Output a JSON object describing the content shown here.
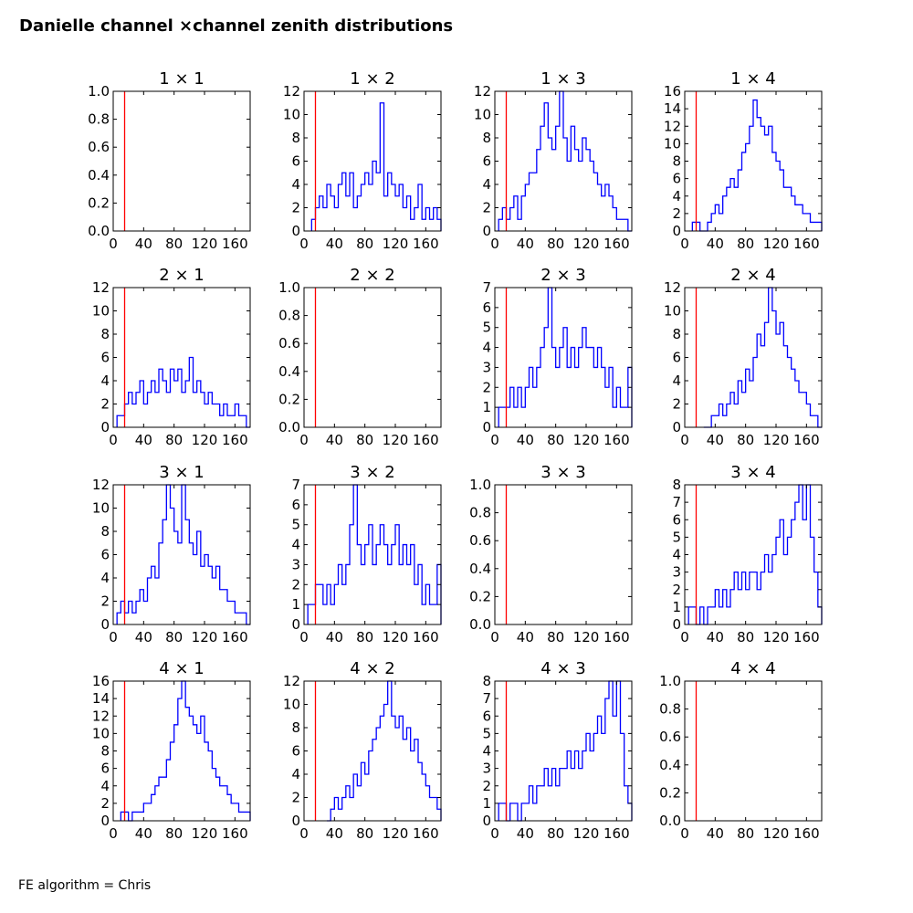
{
  "page": {
    "title": "Danielle channel ×channel zenith distributions",
    "footer": "FE algorithm = Chris"
  },
  "colors": {
    "histogram": "#0000ff",
    "cut_line": "#ff0000",
    "axes": "#000000"
  },
  "chart_data": [
    {
      "type": "histogram",
      "title": "1  × 1",
      "xlim": [
        0,
        180
      ],
      "ylim": [
        0,
        1.0
      ],
      "xticks": [
        "0",
        "40",
        "80",
        "120",
        "160"
      ],
      "yticks": [
        "0.0",
        "0.2",
        "0.4",
        "0.6",
        "0.8",
        "1.0"
      ],
      "cut_x": 15,
      "x": [],
      "values": []
    },
    {
      "type": "histogram",
      "title": "1  × 2",
      "xlim": [
        0,
        180
      ],
      "ylim": [
        0,
        12
      ],
      "xticks": [
        "0",
        "40",
        "80",
        "120",
        "160"
      ],
      "yticks": [
        "0",
        "2",
        "4",
        "6",
        "8",
        "10",
        "12"
      ],
      "cut_x": 15,
      "x": [
        10,
        15,
        20,
        25,
        30,
        35,
        40,
        45,
        50,
        55,
        60,
        65,
        70,
        75,
        80,
        85,
        90,
        95,
        100,
        105,
        110,
        115,
        120,
        125,
        130,
        135,
        140,
        145,
        150,
        155,
        160,
        165,
        170,
        175
      ],
      "values": [
        1,
        2,
        3,
        2,
        4,
        3,
        2,
        4,
        5,
        3,
        5,
        2,
        3,
        4,
        5,
        4,
        6,
        5,
        11,
        3,
        5,
        4,
        3,
        4,
        2,
        3,
        1,
        2,
        4,
        1,
        2,
        1,
        2,
        1
      ]
    },
    {
      "type": "histogram",
      "title": "1  × 3",
      "xlim": [
        0,
        180
      ],
      "ylim": [
        0,
        12
      ],
      "xticks": [
        "0",
        "40",
        "80",
        "120",
        "160"
      ],
      "yticks": [
        "0",
        "2",
        "4",
        "6",
        "8",
        "10",
        "12"
      ],
      "cut_x": 15,
      "x": [
        5,
        10,
        15,
        20,
        25,
        30,
        35,
        40,
        45,
        50,
        55,
        60,
        65,
        70,
        75,
        80,
        85,
        90,
        95,
        100,
        105,
        110,
        115,
        120,
        125,
        130,
        135,
        140,
        145,
        150,
        155,
        160,
        165,
        170,
        175
      ],
      "values": [
        1,
        2,
        1,
        2,
        3,
        1,
        3,
        4,
        5,
        5,
        7,
        9,
        11,
        8,
        7,
        9,
        12,
        8,
        6,
        9,
        7,
        6,
        8,
        7,
        6,
        5,
        4,
        3,
        4,
        3,
        2,
        1,
        1,
        1,
        0
      ]
    },
    {
      "type": "histogram",
      "title": "1  × 4",
      "xlim": [
        0,
        180
      ],
      "ylim": [
        0,
        16
      ],
      "xticks": [
        "0",
        "40",
        "80",
        "120",
        "160"
      ],
      "yticks": [
        "0",
        "2",
        "4",
        "6",
        "8",
        "10",
        "12",
        "14",
        "16"
      ],
      "cut_x": 15,
      "x": [
        10,
        15,
        20,
        25,
        30,
        35,
        40,
        45,
        50,
        55,
        60,
        65,
        70,
        75,
        80,
        85,
        90,
        95,
        100,
        105,
        110,
        115,
        120,
        125,
        130,
        135,
        140,
        145,
        150,
        155,
        160,
        165,
        170,
        175
      ],
      "values": [
        1,
        1,
        0,
        0,
        1,
        2,
        3,
        2,
        4,
        5,
        6,
        5,
        7,
        9,
        10,
        12,
        15,
        13,
        12,
        11,
        12,
        9,
        8,
        7,
        5,
        5,
        4,
        3,
        3,
        2,
        2,
        1,
        1,
        1
      ]
    },
    {
      "type": "histogram",
      "title": "2  × 1",
      "xlim": [
        0,
        180
      ],
      "ylim": [
        0,
        12
      ],
      "xticks": [
        "0",
        "40",
        "80",
        "120",
        "160"
      ],
      "yticks": [
        "0",
        "2",
        "4",
        "6",
        "8",
        "10",
        "12"
      ],
      "cut_x": 15,
      "x": [
        5,
        10,
        15,
        20,
        25,
        30,
        35,
        40,
        45,
        50,
        55,
        60,
        65,
        70,
        75,
        80,
        85,
        90,
        95,
        100,
        105,
        110,
        115,
        120,
        125,
        130,
        135,
        140,
        145,
        150,
        155,
        160,
        165,
        170,
        175
      ],
      "values": [
        1,
        1,
        2,
        3,
        2,
        3,
        4,
        2,
        3,
        4,
        3,
        5,
        4,
        3,
        5,
        4,
        5,
        3,
        4,
        6,
        3,
        4,
        3,
        2,
        3,
        2,
        2,
        1,
        2,
        1,
        1,
        2,
        1,
        1,
        0
      ]
    },
    {
      "type": "histogram",
      "title": "2  × 2",
      "xlim": [
        0,
        180
      ],
      "ylim": [
        0,
        1.0
      ],
      "xticks": [
        "0",
        "40",
        "80",
        "120",
        "160"
      ],
      "yticks": [
        "0.0",
        "0.2",
        "0.4",
        "0.6",
        "0.8",
        "1.0"
      ],
      "cut_x": 15,
      "x": [],
      "values": []
    },
    {
      "type": "histogram",
      "title": "2  × 3",
      "xlim": [
        0,
        180
      ],
      "ylim": [
        0,
        7
      ],
      "xticks": [
        "0",
        "40",
        "80",
        "120",
        "160"
      ],
      "yticks": [
        "0",
        "1",
        "2",
        "3",
        "4",
        "5",
        "6",
        "7"
      ],
      "cut_x": 15,
      "x": [
        5,
        10,
        15,
        20,
        25,
        30,
        35,
        40,
        45,
        50,
        55,
        60,
        65,
        70,
        75,
        80,
        85,
        90,
        95,
        100,
        105,
        110,
        115,
        120,
        125,
        130,
        135,
        140,
        145,
        150,
        155,
        160,
        165,
        170,
        175
      ],
      "values": [
        1,
        1,
        1,
        2,
        1,
        2,
        1,
        2,
        3,
        2,
        3,
        4,
        5,
        7,
        4,
        3,
        4,
        5,
        3,
        4,
        3,
        4,
        5,
        4,
        4,
        3,
        4,
        3,
        2,
        3,
        1,
        2,
        1,
        1,
        3
      ]
    },
    {
      "type": "histogram",
      "title": "2  × 4",
      "xlim": [
        0,
        180
      ],
      "ylim": [
        0,
        12
      ],
      "xticks": [
        "0",
        "40",
        "80",
        "120",
        "160"
      ],
      "yticks": [
        "0",
        "2",
        "4",
        "6",
        "8",
        "10",
        "12"
      ],
      "cut_x": 15,
      "x": [
        25,
        30,
        35,
        40,
        45,
        50,
        55,
        60,
        65,
        70,
        75,
        80,
        85,
        90,
        95,
        100,
        105,
        110,
        115,
        120,
        125,
        130,
        135,
        140,
        145,
        150,
        155,
        160,
        165,
        170,
        175
      ],
      "values": [
        0,
        0,
        1,
        1,
        2,
        1,
        2,
        3,
        2,
        4,
        3,
        5,
        4,
        6,
        8,
        7,
        9,
        12,
        10,
        8,
        9,
        7,
        6,
        5,
        4,
        3,
        3,
        2,
        1,
        1,
        0
      ]
    },
    {
      "type": "histogram",
      "title": "3  × 1",
      "xlim": [
        0,
        180
      ],
      "ylim": [
        0,
        12
      ],
      "xticks": [
        "0",
        "40",
        "80",
        "120",
        "160"
      ],
      "yticks": [
        "0",
        "2",
        "4",
        "6",
        "8",
        "10",
        "12"
      ],
      "cut_x": 15,
      "x": [
        5,
        10,
        15,
        20,
        25,
        30,
        35,
        40,
        45,
        50,
        55,
        60,
        65,
        70,
        75,
        80,
        85,
        90,
        95,
        100,
        105,
        110,
        115,
        120,
        125,
        130,
        135,
        140,
        145,
        150,
        155,
        160,
        165,
        170,
        175
      ],
      "values": [
        1,
        2,
        1,
        2,
        1,
        2,
        3,
        2,
        4,
        5,
        4,
        7,
        9,
        12,
        10,
        8,
        7,
        12,
        9,
        7,
        6,
        8,
        5,
        6,
        5,
        4,
        5,
        3,
        3,
        2,
        2,
        1,
        1,
        1,
        0
      ]
    },
    {
      "type": "histogram",
      "title": "3  × 2",
      "xlim": [
        0,
        180
      ],
      "ylim": [
        0,
        7
      ],
      "xticks": [
        "0",
        "40",
        "80",
        "120",
        "160"
      ],
      "yticks": [
        "0",
        "1",
        "2",
        "3",
        "4",
        "5",
        "6",
        "7"
      ],
      "cut_x": 15,
      "x": [
        5,
        10,
        15,
        20,
        25,
        30,
        35,
        40,
        45,
        50,
        55,
        60,
        65,
        70,
        75,
        80,
        85,
        90,
        95,
        100,
        105,
        110,
        115,
        120,
        125,
        130,
        135,
        140,
        145,
        150,
        155,
        160,
        165,
        170,
        175
      ],
      "values": [
        1,
        1,
        2,
        2,
        1,
        2,
        1,
        2,
        3,
        2,
        3,
        5,
        7,
        4,
        3,
        4,
        5,
        3,
        4,
        5,
        4,
        3,
        4,
        5,
        3,
        4,
        3,
        4,
        2,
        3,
        1,
        2,
        1,
        1,
        3
      ]
    },
    {
      "type": "histogram",
      "title": "3  × 3",
      "xlim": [
        0,
        180
      ],
      "ylim": [
        0,
        1.0
      ],
      "xticks": [
        "0",
        "40",
        "80",
        "120",
        "160"
      ],
      "yticks": [
        "0.0",
        "0.2",
        "0.4",
        "0.6",
        "0.8",
        "1.0"
      ],
      "cut_x": 15,
      "x": [],
      "values": []
    },
    {
      "type": "histogram",
      "title": "3  × 4",
      "xlim": [
        0,
        180
      ],
      "ylim": [
        0,
        8
      ],
      "xticks": [
        "0",
        "40",
        "80",
        "120",
        "160"
      ],
      "yticks": [
        "0",
        "1",
        "2",
        "3",
        "4",
        "5",
        "6",
        "7",
        "8"
      ],
      "cut_x": 15,
      "x": [
        5,
        10,
        15,
        20,
        25,
        30,
        35,
        40,
        45,
        50,
        55,
        60,
        65,
        70,
        75,
        80,
        85,
        90,
        95,
        100,
        105,
        110,
        115,
        120,
        125,
        130,
        135,
        140,
        145,
        150,
        155,
        160,
        165,
        170,
        175
      ],
      "values": [
        1,
        1,
        0,
        1,
        0,
        1,
        1,
        2,
        1,
        2,
        1,
        2,
        3,
        2,
        3,
        2,
        3,
        3,
        2,
        3,
        4,
        3,
        4,
        5,
        6,
        4,
        5,
        6,
        7,
        8,
        6,
        8,
        5,
        3,
        1
      ]
    },
    {
      "type": "histogram",
      "title": "4  × 1",
      "xlim": [
        0,
        180
      ],
      "ylim": [
        0,
        16
      ],
      "xticks": [
        "0",
        "40",
        "80",
        "120",
        "160"
      ],
      "yticks": [
        "0",
        "2",
        "4",
        "6",
        "8",
        "10",
        "12",
        "14",
        "16"
      ],
      "cut_x": 15,
      "x": [
        10,
        15,
        20,
        25,
        30,
        35,
        40,
        45,
        50,
        55,
        60,
        65,
        70,
        75,
        80,
        85,
        90,
        95,
        100,
        105,
        110,
        115,
        120,
        125,
        130,
        135,
        140,
        145,
        150,
        155,
        160,
        165,
        170,
        175
      ],
      "values": [
        1,
        1,
        0,
        1,
        1,
        1,
        2,
        2,
        3,
        4,
        5,
        5,
        7,
        9,
        11,
        14,
        16,
        13,
        12,
        11,
        10,
        12,
        9,
        8,
        6,
        5,
        4,
        4,
        3,
        2,
        2,
        1,
        1,
        1
      ]
    },
    {
      "type": "histogram",
      "title": "4  × 2",
      "xlim": [
        0,
        180
      ],
      "ylim": [
        0,
        12
      ],
      "xticks": [
        "0",
        "40",
        "80",
        "120",
        "160"
      ],
      "yticks": [
        "0",
        "2",
        "4",
        "6",
        "8",
        "10",
        "12"
      ],
      "cut_x": 15,
      "x": [
        30,
        35,
        40,
        45,
        50,
        55,
        60,
        65,
        70,
        75,
        80,
        85,
        90,
        95,
        100,
        105,
        110,
        115,
        120,
        125,
        130,
        135,
        140,
        145,
        150,
        155,
        160,
        165,
        170,
        175
      ],
      "values": [
        0,
        1,
        2,
        1,
        2,
        3,
        2,
        4,
        3,
        5,
        4,
        6,
        7,
        8,
        9,
        10,
        12,
        9,
        8,
        9,
        7,
        8,
        6,
        7,
        5,
        4,
        3,
        2,
        2,
        1
      ]
    },
    {
      "type": "histogram",
      "title": "4  × 3",
      "xlim": [
        0,
        180
      ],
      "ylim": [
        0,
        8
      ],
      "xticks": [
        "0",
        "40",
        "80",
        "120",
        "160"
      ],
      "yticks": [
        "0",
        "1",
        "2",
        "3",
        "4",
        "5",
        "6",
        "7",
        "8"
      ],
      "cut_x": 15,
      "x": [
        5,
        10,
        15,
        20,
        25,
        30,
        35,
        40,
        45,
        50,
        55,
        60,
        65,
        70,
        75,
        80,
        85,
        90,
        95,
        100,
        105,
        110,
        115,
        120,
        125,
        130,
        135,
        140,
        145,
        150,
        155,
        160,
        165,
        170,
        175
      ],
      "values": [
        1,
        1,
        0,
        1,
        1,
        0,
        1,
        1,
        2,
        1,
        2,
        2,
        3,
        2,
        3,
        2,
        3,
        3,
        4,
        3,
        4,
        3,
        4,
        5,
        4,
        5,
        6,
        5,
        7,
        8,
        6,
        8,
        5,
        2,
        1
      ]
    },
    {
      "type": "histogram",
      "title": "4  × 4",
      "xlim": [
        0,
        180
      ],
      "ylim": [
        0,
        1.0
      ],
      "xticks": [
        "0",
        "40",
        "80",
        "120",
        "160"
      ],
      "yticks": [
        "0.0",
        "0.2",
        "0.4",
        "0.6",
        "0.8",
        "1.0"
      ],
      "cut_x": 15,
      "x": [],
      "values": []
    }
  ]
}
